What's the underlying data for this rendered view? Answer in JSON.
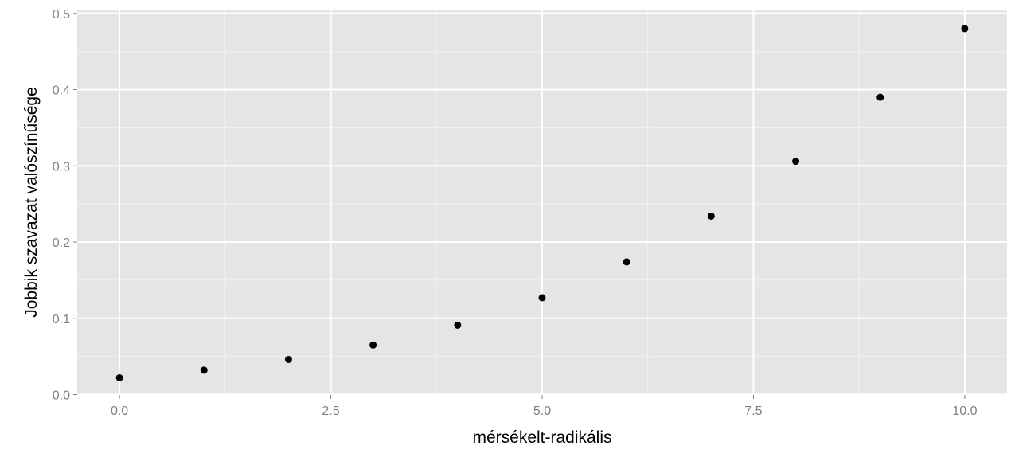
{
  "chart_data": {
    "type": "scatter",
    "title": "",
    "xlabel": "mérsékelt-radikális",
    "ylabel": "Jobbik szavazat valószínűsége",
    "xlim": [
      -0.5,
      10.5
    ],
    "ylim": [
      -0.0005,
      0.505
    ],
    "x_ticks": [
      0,
      2.5,
      5,
      7.5,
      10
    ],
    "x_tick_labels": [
      "0.0",
      "2.5",
      "5.0",
      "7.5",
      "10.0"
    ],
    "y_ticks": [
      0,
      0.1,
      0.2,
      0.3,
      0.4,
      0.5
    ],
    "y_tick_labels": [
      "0.0",
      "0.1",
      "0.2",
      "0.3",
      "0.4",
      "0.5"
    ],
    "grid": true,
    "legend": "none",
    "colors": {
      "panel_background": "#e5e5e5",
      "grid_major": "#ffffff",
      "grid_minor": "#f2f2f2",
      "point": "#000000",
      "tick_text": "#7f7f7f",
      "tick_mark": "#7f7f7f"
    },
    "series": [
      {
        "x": [
          0,
          1,
          2,
          3,
          4,
          5,
          6,
          7,
          8,
          9,
          10
        ],
        "y": [
          0.022,
          0.032,
          0.046,
          0.065,
          0.091,
          0.127,
          0.174,
          0.234,
          0.306,
          0.39,
          0.48
        ]
      }
    ]
  }
}
